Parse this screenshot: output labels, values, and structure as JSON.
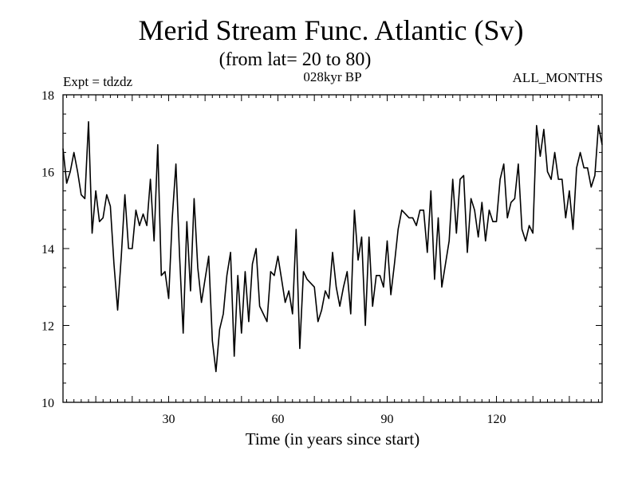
{
  "chart_data": {
    "type": "line",
    "title": "Merid Stream Func. Atlantic (Sv)",
    "subtitle": "(from lat= 20 to 80)",
    "left_label": "Expt = tdzdz",
    "center_label": "028kyr BP",
    "right_label": "ALL_MONTHS",
    "xlabel": "Time (in years since start)",
    "ylabel": "",
    "xlim": [
      1,
      149
    ],
    "ylim": [
      10,
      18
    ],
    "xticks": [
      30,
      60,
      90,
      120
    ],
    "xtick_labels": [
      "30",
      "60",
      "90",
      "120"
    ],
    "yticks": [
      10,
      12,
      14,
      16,
      18
    ],
    "ytick_labels": [
      "10",
      "12",
      "14",
      "16",
      "18"
    ],
    "grid": false,
    "series": [
      {
        "name": "Merid Stream Func. Atlantic",
        "x": [
          1,
          2,
          3,
          4,
          5,
          6,
          7,
          8,
          9,
          10,
          11,
          12,
          13,
          14,
          15,
          16,
          17,
          18,
          19,
          20,
          21,
          22,
          23,
          24,
          25,
          26,
          27,
          28,
          29,
          30,
          31,
          32,
          33,
          34,
          35,
          36,
          37,
          38,
          39,
          40,
          41,
          42,
          43,
          44,
          45,
          46,
          47,
          48,
          49,
          50,
          51,
          52,
          53,
          54,
          55,
          56,
          57,
          58,
          59,
          60,
          61,
          62,
          63,
          64,
          65,
          66,
          67,
          68,
          69,
          70,
          71,
          72,
          73,
          74,
          75,
          76,
          77,
          78,
          79,
          80,
          81,
          82,
          83,
          84,
          85,
          86,
          87,
          88,
          89,
          90,
          91,
          92,
          93,
          94,
          95,
          96,
          97,
          98,
          99,
          100,
          101,
          102,
          103,
          104,
          105,
          106,
          107,
          108,
          109,
          110,
          111,
          112,
          113,
          114,
          115,
          116,
          117,
          118,
          119,
          120,
          121,
          122,
          123,
          124,
          125,
          126,
          127,
          128,
          129,
          130,
          131,
          132,
          133,
          134,
          135,
          136,
          137,
          138,
          139,
          140,
          141,
          142,
          143,
          144,
          145,
          146,
          147,
          148,
          149
        ],
        "values": [
          16.6,
          15.7,
          16.0,
          16.5,
          16.0,
          15.4,
          15.3,
          17.3,
          14.4,
          15.5,
          14.7,
          14.8,
          15.4,
          15.1,
          13.6,
          12.4,
          13.8,
          15.4,
          14.0,
          14.0,
          15.0,
          14.6,
          14.9,
          14.6,
          15.8,
          14.2,
          16.7,
          13.3,
          13.4,
          12.7,
          14.8,
          16.2,
          13.8,
          11.8,
          14.7,
          12.9,
          15.3,
          13.5,
          12.6,
          13.2,
          13.8,
          11.6,
          10.8,
          11.9,
          12.3,
          13.3,
          13.9,
          11.2,
          13.3,
          11.8,
          13.4,
          12.1,
          13.6,
          14.0,
          12.5,
          12.3,
          12.1,
          13.4,
          13.3,
          13.8,
          13.2,
          12.6,
          12.9,
          12.3,
          14.5,
          11.4,
          13.4,
          13.2,
          13.1,
          13.0,
          12.1,
          12.4,
          12.9,
          12.7,
          13.9,
          13.0,
          12.5,
          13.0,
          13.4,
          12.3,
          15.0,
          13.7,
          14.3,
          12.0,
          14.3,
          12.5,
          13.3,
          13.3,
          13.0,
          14.2,
          12.8,
          13.6,
          14.5,
          15.0,
          14.9,
          14.8,
          14.8,
          14.6,
          15.0,
          15.0,
          13.9,
          15.5,
          13.2,
          14.8,
          13.0,
          13.6,
          14.2,
          15.8,
          14.4,
          15.8,
          15.9,
          13.9,
          15.3,
          15.0,
          14.3,
          15.2,
          14.2,
          15.0,
          14.7,
          14.7,
          15.8,
          16.2,
          14.8,
          15.2,
          15.3,
          16.2,
          14.5,
          14.2,
          14.6,
          14.4,
          17.2,
          16.4,
          17.1,
          16.0,
          15.8,
          16.5,
          15.8,
          15.8,
          14.8,
          15.5,
          14.5,
          16.1,
          16.5,
          16.1,
          16.1,
          15.6,
          15.9,
          17.2,
          16.7
        ]
      }
    ]
  }
}
